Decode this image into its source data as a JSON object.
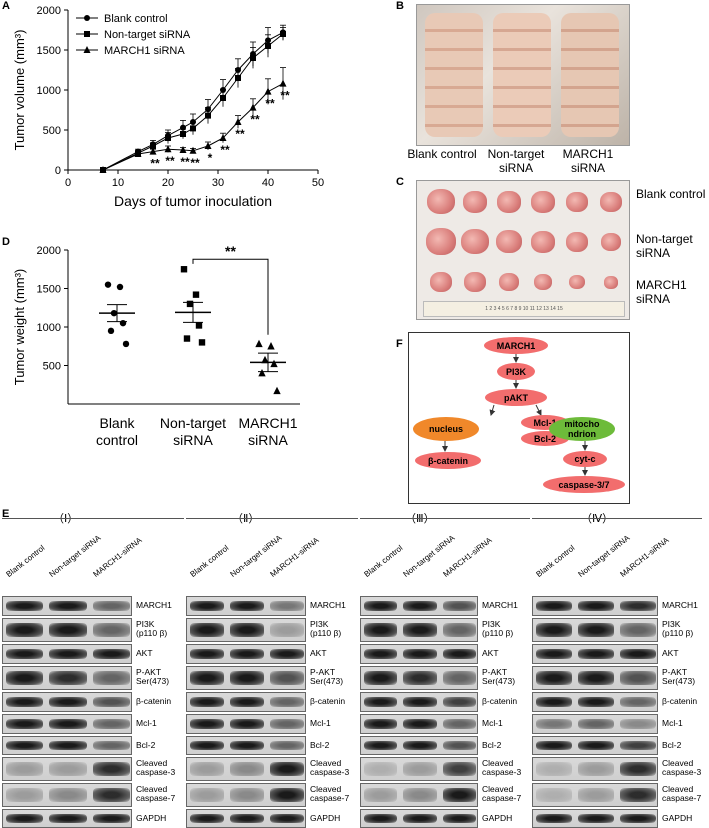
{
  "panels": {
    "a": "A",
    "b": "B",
    "c": "C",
    "d": "D",
    "e": "E",
    "f": "F"
  },
  "chart_data": [
    {
      "type": "line",
      "panel": "A",
      "xlabel": "Days of tumor inoculation",
      "ylabel": "Tumor volume (mm³)",
      "xlim": [
        0,
        50
      ],
      "ylim": [
        0,
        2000
      ],
      "xticks": [
        "0",
        "10",
        "20",
        "30",
        "40",
        "50"
      ],
      "yticks": [
        "0",
        "500",
        "1000",
        "1500",
        "2000"
      ],
      "legend": "top-left",
      "x": [
        7,
        14,
        17,
        20,
        23,
        25,
        28,
        31,
        34,
        37,
        40,
        43
      ],
      "series": [
        {
          "name": "Blank control",
          "marker": "circle",
          "values": [
            0,
            230,
            320,
            430,
            530,
            600,
            760,
            1000,
            1250,
            1450,
            1620,
            1720
          ],
          "err": [
            0,
            30,
            50,
            70,
            90,
            100,
            120,
            130,
            140,
            150,
            160,
            90
          ]
        },
        {
          "name": "Non-target siRNA",
          "marker": "square",
          "values": [
            0,
            210,
            300,
            400,
            450,
            520,
            680,
            900,
            1150,
            1400,
            1550,
            1700
          ],
          "err": [
            0,
            30,
            40,
            70,
            60,
            80,
            100,
            110,
            120,
            130,
            140,
            80
          ]
        },
        {
          "name": "MARCH1 siRNA",
          "marker": "triangle",
          "values": [
            0,
            200,
            230,
            260,
            250,
            240,
            300,
            400,
            600,
            780,
            980,
            1080
          ],
          "err": [
            0,
            20,
            30,
            40,
            30,
            30,
            50,
            60,
            80,
            110,
            160,
            200
          ]
        }
      ],
      "annotations": [
        {
          "x": 17,
          "y": 230,
          "text": "**"
        },
        {
          "x": 20,
          "y": 260,
          "text": "**"
        },
        {
          "x": 23,
          "y": 250,
          "text": "**"
        },
        {
          "x": 25,
          "y": 240,
          "text": "**"
        },
        {
          "x": 28,
          "y": 300,
          "text": "*"
        },
        {
          "x": 31,
          "y": 400,
          "text": "**"
        },
        {
          "x": 34,
          "y": 600,
          "text": "**"
        },
        {
          "x": 37,
          "y": 780,
          "text": "**"
        },
        {
          "x": 40,
          "y": 980,
          "text": "**"
        },
        {
          "x": 43,
          "y": 1080,
          "text": "**"
        }
      ]
    },
    {
      "type": "scatter",
      "panel": "D",
      "ylabel": "Tumor weight (mm³)",
      "ylim": [
        0,
        2000
      ],
      "yticks": [
        "500",
        "1000",
        "1500",
        "2000"
      ],
      "categories": [
        "Blank\ncontrol",
        "Non-target\nsiRNA",
        "MARCH1\nsiRNA"
      ],
      "series": [
        {
          "name": "Blank control",
          "marker": "circle",
          "values": [
            1550,
            1520,
            1180,
            1050,
            950,
            780
          ],
          "mean": 1180,
          "sem": 110
        },
        {
          "name": "Non-target siRNA",
          "marker": "square",
          "values": [
            1750,
            1420,
            1300,
            1020,
            850,
            800
          ],
          "mean": 1190,
          "sem": 130
        },
        {
          "name": "MARCH1 siRNA",
          "marker": "triangle",
          "values": [
            780,
            750,
            570,
            520,
            400,
            170
          ],
          "mean": 540,
          "sem": 120
        }
      ],
      "significance": {
        "between": [
          1,
          2
        ],
        "text": "**"
      }
    }
  ],
  "panel_b": {
    "labels": [
      "Blank\ncontrol",
      "Non-target\nsiRNA",
      "MARCH1\nsiRNA"
    ]
  },
  "panel_c": {
    "rows": [
      "Blank\ncontrol",
      "Non-target\nsiRNA",
      "MARCH1\nsiRNA"
    ],
    "ruler": "1  2  3  4  5  6  7  8  9  10  11  12  13  14  15"
  },
  "panel_f": {
    "nodes": [
      "MARCH1",
      "PI3K",
      "pAKT",
      "nucleus",
      "Mcl-1",
      "Bcl-2",
      "mitocho\nndrion",
      "β-catenin",
      "cyt-c",
      "caspase-3/7"
    ],
    "colors": {
      "red": "#f26d6d",
      "orange": "#f0882a",
      "green": "#6dbb3a"
    }
  },
  "panel_e": {
    "groups": [
      "（Ⅰ）",
      "（Ⅱ）",
      "（Ⅲ）",
      "（Ⅳ）"
    ],
    "lanes_g1": [
      "Blank control",
      "Non-target siRNA",
      "MARCH1-siRNA"
    ],
    "lanes_g234": [
      "Blank control",
      "Non-target siRNA",
      "MARCH1-siRNA"
    ],
    "bands": [
      "MARCH1",
      "PI3K\n(p110 β)",
      "AKT",
      "P-AKT\nSer(473)",
      "β-catenin",
      "Mcl-1",
      "Bcl-2",
      "Cleaved\ncaspase-3",
      "Cleaved\ncaspase-7",
      "GAPDH"
    ]
  }
}
